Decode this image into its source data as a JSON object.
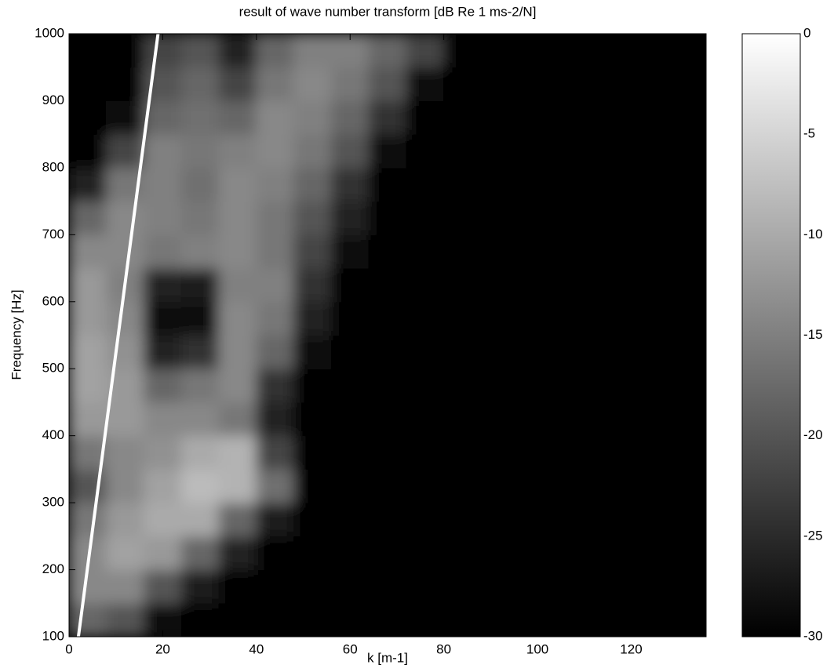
{
  "chart_data": {
    "type": "heatmap",
    "title": "result of wave number transform [dB Re 1 ms-2/N]",
    "x_label": "k [m-1]",
    "y_label": "Frequency [Hz]",
    "xlim": [
      0,
      136
    ],
    "xticks": [
      0,
      20,
      40,
      60,
      80,
      100,
      120
    ],
    "ylim": [
      100,
      1000
    ],
    "yticks": [
      100,
      200,
      300,
      400,
      500,
      600,
      700,
      800,
      900,
      1000
    ],
    "x_edges": [
      0,
      8,
      16,
      24,
      32,
      40,
      48,
      56,
      64,
      72,
      80,
      88,
      96,
      104,
      112,
      120,
      128,
      136
    ],
    "y_edges": [
      100,
      150,
      200,
      250,
      300,
      350,
      400,
      450,
      500,
      550,
      600,
      650,
      700,
      750,
      800,
      850,
      900,
      950,
      1000
    ],
    "colormap": "gray",
    "colorbar": {
      "lim": [
        -30,
        0
      ],
      "ticks": [
        0,
        -5,
        -10,
        -15,
        -20,
        -25,
        -30
      ]
    },
    "z": [
      [
        -18,
        -20,
        -28,
        -30,
        -30,
        -30,
        -30,
        -30,
        -30,
        -30,
        -30,
        -30,
        -30,
        -30,
        -30,
        -30,
        -30
      ],
      [
        -14,
        -14,
        -20,
        -27,
        -30,
        -30,
        -30,
        -30,
        -30,
        -30,
        -30,
        -30,
        -30,
        -30,
        -30,
        -30,
        -30
      ],
      [
        -14,
        -11,
        -12,
        -18,
        -26,
        -30,
        -30,
        -30,
        -30,
        -30,
        -30,
        -30,
        -30,
        -30,
        -30,
        -30,
        -30
      ],
      [
        -16,
        -12,
        -10,
        -10,
        -18,
        -27,
        -30,
        -30,
        -30,
        -30,
        -30,
        -30,
        -30,
        -30,
        -30,
        -30,
        -30
      ],
      [
        -20,
        -14,
        -11,
        -8,
        -9,
        -17,
        -30,
        -30,
        -30,
        -30,
        -30,
        -30,
        -30,
        -30,
        -30,
        -30,
        -30
      ],
      [
        -16,
        -14,
        -13,
        -10,
        -9,
        -22,
        -30,
        -30,
        -30,
        -30,
        -30,
        -30,
        -30,
        -30,
        -30,
        -30,
        -30
      ],
      [
        -12,
        -12,
        -14,
        -14,
        -16,
        -26,
        -30,
        -30,
        -30,
        -30,
        -30,
        -30,
        -30,
        -30,
        -30,
        -30,
        -30
      ],
      [
        -11,
        -12,
        -18,
        -16,
        -14,
        -24,
        -30,
        -30,
        -30,
        -30,
        -30,
        -30,
        -30,
        -30,
        -30,
        -30,
        -30
      ],
      [
        -11,
        -13,
        -26,
        -24,
        -14,
        -18,
        -28,
        -30,
        -30,
        -30,
        -30,
        -30,
        -30,
        -30,
        -30,
        -30,
        -30
      ],
      [
        -12,
        -14,
        -29,
        -28,
        -14,
        -16,
        -26,
        -30,
        -30,
        -30,
        -30,
        -30,
        -30,
        -30,
        -30,
        -30,
        -30
      ],
      [
        -12,
        -15,
        -26,
        -27,
        -15,
        -15,
        -24,
        -30,
        -30,
        -30,
        -30,
        -30,
        -30,
        -30,
        -30,
        -30,
        -30
      ],
      [
        -14,
        -14,
        -16,
        -15,
        -14,
        -16,
        -22,
        -28,
        -30,
        -30,
        -30,
        -30,
        -30,
        -30,
        -30,
        -30,
        -30
      ],
      [
        -18,
        -14,
        -15,
        -16,
        -14,
        -16,
        -20,
        -26,
        -30,
        -30,
        -30,
        -30,
        -30,
        -30,
        -30,
        -30,
        -30
      ],
      [
        -26,
        -16,
        -15,
        -17,
        -14,
        -15,
        -18,
        -24,
        -30,
        -30,
        -30,
        -30,
        -30,
        -30,
        -30,
        -30,
        -30
      ],
      [
        -30,
        -22,
        -15,
        -16,
        -15,
        -14,
        -16,
        -20,
        -28,
        -30,
        -30,
        -30,
        -30,
        -30,
        -30,
        -30,
        -30
      ],
      [
        -30,
        -28,
        -18,
        -17,
        -18,
        -14,
        -15,
        -18,
        -24,
        -30,
        -30,
        -30,
        -30,
        -30,
        -30,
        -30,
        -30
      ],
      [
        -30,
        -30,
        -20,
        -18,
        -22,
        -16,
        -14,
        -16,
        -20,
        -28,
        -30,
        -30,
        -30,
        -30,
        -30,
        -30,
        -30
      ],
      [
        -30,
        -30,
        -22,
        -20,
        -26,
        -18,
        -15,
        -15,
        -18,
        -22,
        -30,
        -30,
        -30,
        -30,
        -30,
        -30,
        -30
      ]
    ],
    "line": {
      "x": [
        2,
        19
      ],
      "y": [
        100,
        1000
      ],
      "color": "#ffffff"
    }
  }
}
